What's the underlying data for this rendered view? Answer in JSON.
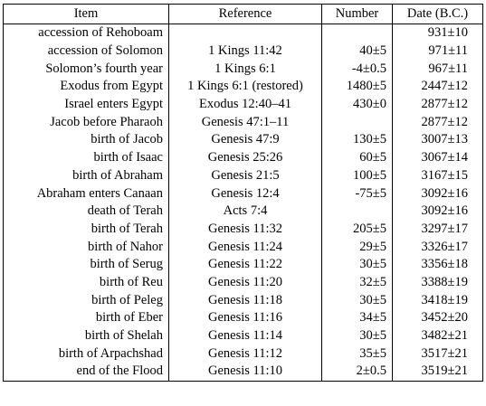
{
  "table": {
    "headers": [
      "Item",
      "Reference",
      "Number",
      "Date (B.C.)"
    ],
    "rows": [
      [
        "accession of Rehoboam",
        null,
        null,
        "931±10"
      ],
      [
        "accession of Solomon",
        "1 Kings 11:42",
        "40±5",
        "971±11"
      ],
      [
        "Solomon’s fourth year",
        "1 Kings 6:1",
        "-4±0.5",
        "967±11"
      ],
      [
        "Exodus from Egypt",
        "1 Kings 6:1 (restored)",
        "1480±5",
        "2447±12"
      ],
      [
        "Israel enters Egypt",
        "Exodus 12:40–41",
        "430±0",
        "2877±12"
      ],
      [
        "Jacob before Pharaoh",
        "Genesis 47:1–11",
        null,
        "2877±12"
      ],
      [
        "birth of Jacob",
        "Genesis 47:9",
        "130±5",
        "3007±13"
      ],
      [
        "birth of Isaac",
        "Genesis 25:26",
        "60±5",
        "3067±14"
      ],
      [
        "birth of Abraham",
        "Genesis 21:5",
        "100±5",
        "3167±15"
      ],
      [
        "Abraham enters Canaan",
        "Genesis 12:4",
        "-75±5",
        "3092±16"
      ],
      [
        "death of Terah",
        "Acts 7:4",
        null,
        "3092±16"
      ],
      [
        "birth of Terah",
        "Genesis 11:32",
        "205±5",
        "3297±17"
      ],
      [
        "birth of Nahor",
        "Genesis 11:24",
        "29±5",
        "3326±17"
      ],
      [
        "birth of Serug",
        "Genesis 11:22",
        "30±5",
        "3356±18"
      ],
      [
        "birth of Reu",
        "Genesis 11:20",
        "32±5",
        "3388±19"
      ],
      [
        "birth of Peleg",
        "Genesis 11:18",
        "30±5",
        "3418±19"
      ],
      [
        "birth of Eber",
        "Genesis 11:16",
        "34±5",
        "3452±20"
      ],
      [
        "birth of Shelah",
        "Genesis 11:14",
        "30±5",
        "3482±21"
      ],
      [
        "birth of Arpachshad",
        "Genesis 11:12",
        "35±5",
        "3517±21"
      ],
      [
        "end of the Flood",
        "Genesis 11:10",
        "2±0.5",
        "3519±21"
      ]
    ]
  }
}
